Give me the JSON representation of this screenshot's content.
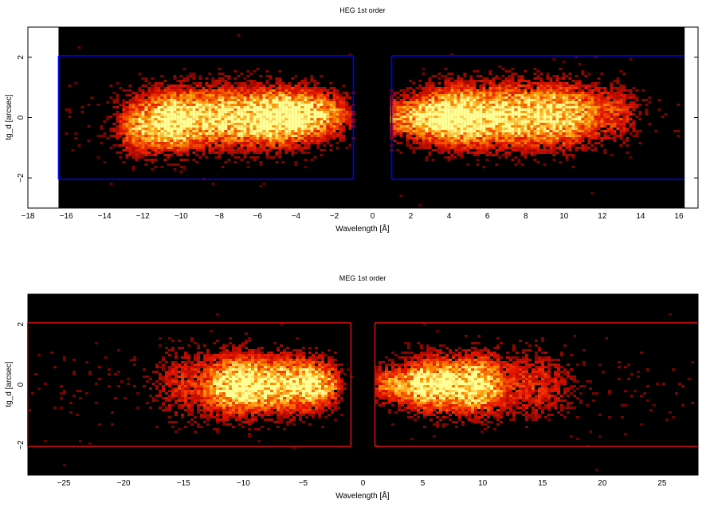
{
  "chart_data": [
    {
      "type": "heatmap",
      "title": "HEG 1st order",
      "xlabel": "Wavelength [Å]",
      "ylabel": "tg_d [arcsec]",
      "xlim": [
        -18,
        17
      ],
      "ylim": [
        -3,
        3
      ],
      "grid": false,
      "x_ticks": [
        -18,
        -16,
        -14,
        -12,
        -10,
        -8,
        -6,
        -4,
        -2,
        0,
        2,
        4,
        6,
        8,
        10,
        12,
        14,
        16
      ],
      "y_ticks": [
        -2,
        0,
        2
      ],
      "data_extent_x": [
        -16.4,
        16.3
      ],
      "extraction_regions": [
        {
          "x": [
            -16.4,
            -1.0
          ],
          "y": [
            -2.05,
            2.05
          ],
          "color": "#0000ff"
        },
        {
          "x": [
            1.0,
            16.3
          ],
          "y": [
            -2.05,
            2.05
          ],
          "color": "#0000ff"
        }
      ],
      "sources": [
        {
          "x": -7.5,
          "y": 0.0,
          "width": 3.3,
          "height": 0.75,
          "peak": 1.0
        },
        {
          "x": -3.5,
          "y": 0.1,
          "width": 1.7,
          "height": 0.6,
          "peak": 0.55
        },
        {
          "x": -11.5,
          "y": -0.4,
          "width": 1.3,
          "height": 0.7,
          "peak": 0.45
        },
        {
          "x": 6.8,
          "y": 0.05,
          "width": 2.9,
          "height": 0.8,
          "peak": 1.0
        },
        {
          "x": 3.0,
          "y": 0.0,
          "width": 1.8,
          "height": 0.55,
          "peak": 0.65
        },
        {
          "x": 11.5,
          "y": 0.15,
          "width": 1.6,
          "height": 0.75,
          "peak": 0.4
        }
      ]
    },
    {
      "type": "heatmap",
      "title": "MEG 1st order",
      "xlabel": "Wavelength [Å]",
      "ylabel": "tg_d [arcsec]",
      "xlim": [
        -28,
        28
      ],
      "ylim": [
        -3,
        3
      ],
      "grid": false,
      "x_ticks": [
        -25,
        -20,
        -15,
        -10,
        -5,
        0,
        5,
        10,
        15,
        20,
        25
      ],
      "y_ticks": [
        -2,
        0,
        2
      ],
      "data_extent_x": [
        -28,
        28
      ],
      "extraction_regions": [
        {
          "x": [
            -28,
            -1.0
          ],
          "y": [
            -2.05,
            2.05
          ],
          "color": "#cc1111"
        },
        {
          "x": 1.0,
          "x_end": 28,
          "y": [
            -2.05,
            2.05
          ],
          "color": "#cc1111"
        }
      ],
      "sources": [
        {
          "x": -8.0,
          "y": 0.0,
          "width": 3.2,
          "height": 0.7,
          "peak": 1.0
        },
        {
          "x": -3.5,
          "y": 0.0,
          "width": 1.2,
          "height": 0.55,
          "peak": 0.55
        },
        {
          "x": -13.0,
          "y": 0.0,
          "width": 3.0,
          "height": 0.9,
          "peak": 0.3
        },
        {
          "x": 7.5,
          "y": 0.0,
          "width": 2.6,
          "height": 0.7,
          "peak": 1.0
        },
        {
          "x": 3.0,
          "y": 0.0,
          "width": 1.5,
          "height": 0.5,
          "peak": 0.55
        },
        {
          "x": 13.0,
          "y": 0.0,
          "width": 3.0,
          "height": 0.9,
          "peak": 0.3
        }
      ]
    }
  ]
}
